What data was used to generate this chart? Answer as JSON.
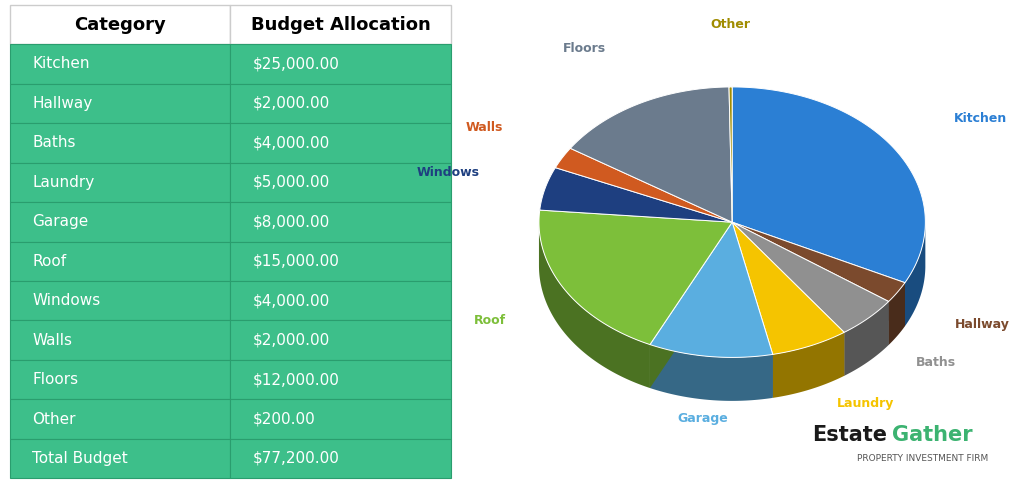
{
  "categories": [
    "Kitchen",
    "Hallway",
    "Baths",
    "Laundry",
    "Garage",
    "Roof",
    "Windows",
    "Walls",
    "Floors",
    "Other"
  ],
  "values": [
    25000,
    2000,
    4000,
    5000,
    8000,
    15000,
    4000,
    2000,
    12000,
    200
  ],
  "total": 77200,
  "pie_colors": [
    "#2B7FD4",
    "#7B4A2D",
    "#909090",
    "#F5C400",
    "#5AAEE0",
    "#7DBF3A",
    "#1E3F80",
    "#D05A20",
    "#6B7B8D",
    "#A08C00"
  ],
  "pie_label_colors": [
    "#2B7FD4",
    "#7B4A2D",
    "#909090",
    "#F5C400",
    "#5AAEE0",
    "#7DBF3A",
    "#1E3F80",
    "#D05A20",
    "#6B7B8D",
    "#A08C00"
  ],
  "table_header_bg": "#ffffff",
  "table_cell_bg": "#3DBF8A",
  "table_border_color": "#2a9d6e",
  "table_text_color": "#ffffff",
  "table_header_text_color": "#000000",
  "col_labels": [
    "Category",
    "Budget Allocation"
  ],
  "logo_text1": "Estate",
  "logo_text2": "Gather",
  "logo_sub": "PROPERTY INVESTMENT FIRM",
  "logo_color1": "#1a1a1a",
  "logo_color2": "#3CB371",
  "logo_sub_color": "#555555",
  "background_color": "#ffffff"
}
